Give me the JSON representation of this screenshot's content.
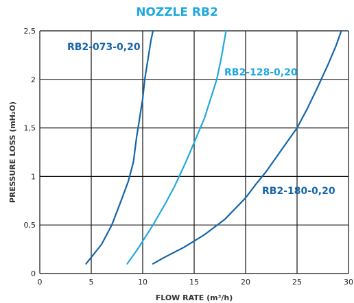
{
  "chart_data": {
    "type": "line",
    "title": "NOZZLE RB2",
    "xlabel": "FLOW RATE (m³/h)",
    "ylabel": "PRESSURE LOSS (mH₂O)",
    "xlim": [
      0,
      30
    ],
    "ylim": [
      0,
      2.5
    ],
    "x_ticks": [
      "0",
      "5",
      "10",
      "15",
      "20",
      "25",
      "30"
    ],
    "y_ticks": [
      "0",
      "0,5",
      "1",
      "1,5",
      "2",
      "2,5"
    ],
    "grid": true,
    "series": [
      {
        "name": "RB2-073-0,20",
        "color": "#1565a8",
        "points": [
          [
            4.5,
            0.1
          ],
          [
            6.0,
            0.3
          ],
          [
            7.0,
            0.5
          ],
          [
            7.9,
            0.75
          ],
          [
            8.6,
            0.95
          ],
          [
            9.1,
            1.15
          ],
          [
            9.4,
            1.4
          ],
          [
            9.7,
            1.6
          ],
          [
            10.0,
            1.8
          ],
          [
            10.2,
            2.0
          ],
          [
            10.5,
            2.2
          ],
          [
            10.8,
            2.4
          ],
          [
            11.0,
            2.5
          ]
        ]
      },
      {
        "name": "RB2-128-0,20",
        "color": "#1fa8e0",
        "points": [
          [
            8.5,
            0.1
          ],
          [
            9.5,
            0.25
          ],
          [
            11.0,
            0.5
          ],
          [
            12.2,
            0.72
          ],
          [
            13.1,
            0.9
          ],
          [
            14.2,
            1.15
          ],
          [
            15.2,
            1.4
          ],
          [
            16.0,
            1.6
          ],
          [
            16.6,
            1.8
          ],
          [
            17.2,
            2.0
          ],
          [
            17.6,
            2.2
          ],
          [
            18.1,
            2.5
          ]
        ]
      },
      {
        "name": "RB2-180-0,20",
        "color": "#1565a8",
        "points": [
          [
            11.0,
            0.1
          ],
          [
            12.0,
            0.16
          ],
          [
            14.0,
            0.27
          ],
          [
            16.0,
            0.4
          ],
          [
            18.0,
            0.56
          ],
          [
            20.0,
            0.78
          ],
          [
            21.0,
            0.92
          ],
          [
            22.0,
            1.05
          ],
          [
            24.0,
            1.35
          ],
          [
            25.0,
            1.5
          ],
          [
            26.0,
            1.7
          ],
          [
            27.0,
            1.92
          ],
          [
            28.0,
            2.15
          ],
          [
            28.8,
            2.35
          ],
          [
            29.3,
            2.5
          ]
        ]
      }
    ]
  }
}
